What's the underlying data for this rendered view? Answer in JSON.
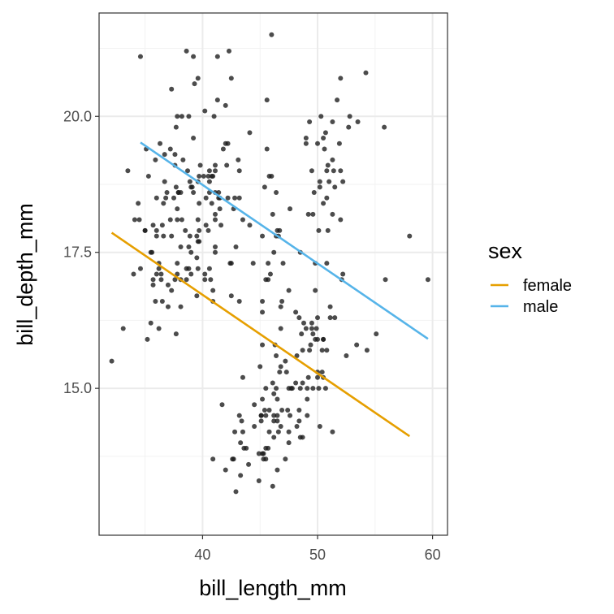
{
  "chart_data": {
    "type": "scatter",
    "xlabel": "bill_length_mm",
    "ylabel": "bill_depth_mm",
    "xlim": [
      31,
      61.3
    ],
    "ylim": [
      12.3,
      21.9
    ],
    "xticks": [
      40,
      50,
      60
    ],
    "yticks": [
      15.0,
      17.5,
      20.0
    ],
    "xtick_labels": [
      "40",
      "50",
      "60"
    ],
    "ytick_labels": [
      "15.0",
      "17.5",
      "20.0"
    ],
    "grid": true,
    "point_color": "#1a1a1a",
    "legend": {
      "title": "sex",
      "position": "right",
      "entries": [
        {
          "label": "female",
          "color": "#E69F00"
        },
        {
          "label": "male",
          "color": "#56B4E9"
        }
      ]
    },
    "lines": [
      {
        "name": "female",
        "color": "#E69F00",
        "x": [
          32.1,
          58.0
        ],
        "y": [
          17.86,
          14.12
        ]
      },
      {
        "name": "male",
        "color": "#56B4E9",
        "x": [
          34.6,
          59.6
        ],
        "y": [
          19.52,
          15.91
        ]
      }
    ],
    "points": [
      [
        39.1,
        18.7
      ],
      [
        39.5,
        17.4
      ],
      [
        40.3,
        18.0
      ],
      [
        36.7,
        19.3
      ],
      [
        39.3,
        20.6
      ],
      [
        38.9,
        17.8
      ],
      [
        39.2,
        19.6
      ],
      [
        34.1,
        18.1
      ],
      [
        42.0,
        20.2
      ],
      [
        37.8,
        17.1
      ],
      [
        37.8,
        17.3
      ],
      [
        41.1,
        17.6
      ],
      [
        38.6,
        21.2
      ],
      [
        34.6,
        21.1
      ],
      [
        36.6,
        17.8
      ],
      [
        38.7,
        19.0
      ],
      [
        42.5,
        20.7
      ],
      [
        34.4,
        18.4
      ],
      [
        46.0,
        21.5
      ],
      [
        37.8,
        18.3
      ],
      [
        37.7,
        18.7
      ],
      [
        35.9,
        19.2
      ],
      [
        38.2,
        18.1
      ],
      [
        38.8,
        17.2
      ],
      [
        35.3,
        18.9
      ],
      [
        40.6,
        18.6
      ],
      [
        40.5,
        17.9
      ],
      [
        37.9,
        18.6
      ],
      [
        40.5,
        18.9
      ],
      [
        39.5,
        16.7
      ],
      [
        37.2,
        18.1
      ],
      [
        39.5,
        17.8
      ],
      [
        40.9,
        18.9
      ],
      [
        36.4,
        17.0
      ],
      [
        39.2,
        21.1
      ],
      [
        38.8,
        20.0
      ],
      [
        42.2,
        18.5
      ],
      [
        37.6,
        19.3
      ],
      [
        39.8,
        19.1
      ],
      [
        36.5,
        18.0
      ],
      [
        40.8,
        18.4
      ],
      [
        36.0,
        18.5
      ],
      [
        44.1,
        19.7
      ],
      [
        37.0,
        16.9
      ],
      [
        39.6,
        18.8
      ],
      [
        41.1,
        19.0
      ],
      [
        36.0,
        17.9
      ],
      [
        42.3,
        21.2
      ],
      [
        39.6,
        17.7
      ],
      [
        40.1,
        18.9
      ],
      [
        35.0,
        17.9
      ],
      [
        42.0,
        19.5
      ],
      [
        34.5,
        18.1
      ],
      [
        41.4,
        18.6
      ],
      [
        39.0,
        17.5
      ],
      [
        40.6,
        18.8
      ],
      [
        36.5,
        16.6
      ],
      [
        37.6,
        19.1
      ],
      [
        35.7,
        16.9
      ],
      [
        41.3,
        21.1
      ],
      [
        37.6,
        17.0
      ],
      [
        41.1,
        18.2
      ],
      [
        36.4,
        17.1
      ],
      [
        41.6,
        18.0
      ],
      [
        35.5,
        16.2
      ],
      [
        41.1,
        19.1
      ],
      [
        35.9,
        16.6
      ],
      [
        41.8,
        19.4
      ],
      [
        33.5,
        19.0
      ],
      [
        39.7,
        18.4
      ],
      [
        39.6,
        17.2
      ],
      [
        45.8,
        18.9
      ],
      [
        35.5,
        17.5
      ],
      [
        42.8,
        18.5
      ],
      [
        40.9,
        16.8
      ],
      [
        37.2,
        19.4
      ],
      [
        36.2,
        16.1
      ],
      [
        42.1,
        19.1
      ],
      [
        34.6,
        17.2
      ],
      [
        42.9,
        17.6
      ],
      [
        36.7,
        18.8
      ],
      [
        35.1,
        19.4
      ],
      [
        37.3,
        17.8
      ],
      [
        41.3,
        20.3
      ],
      [
        36.3,
        19.5
      ],
      [
        36.9,
        18.6
      ],
      [
        38.3,
        19.2
      ],
      [
        38.9,
        18.8
      ],
      [
        35.7,
        18.0
      ],
      [
        41.1,
        18.1
      ],
      [
        34.0,
        17.1
      ],
      [
        39.6,
        18.1
      ],
      [
        36.2,
        17.3
      ],
      [
        40.8,
        18.9
      ],
      [
        38.1,
        18.6
      ],
      [
        40.3,
        18.5
      ],
      [
        33.1,
        16.1
      ],
      [
        43.2,
        18.5
      ],
      [
        35.0,
        17.9
      ],
      [
        41.0,
        20.0
      ],
      [
        37.7,
        16.0
      ],
      [
        37.8,
        20.0
      ],
      [
        37.9,
        18.6
      ],
      [
        39.7,
        18.9
      ],
      [
        38.6,
        17.2
      ],
      [
        38.2,
        20.0
      ],
      [
        38.1,
        17.0
      ],
      [
        43.2,
        19.0
      ],
      [
        38.1,
        16.5
      ],
      [
        45.6,
        20.3
      ],
      [
        39.7,
        17.7
      ],
      [
        42.2,
        19.5
      ],
      [
        39.6,
        20.7
      ],
      [
        42.7,
        18.3
      ],
      [
        38.6,
        17.0
      ],
      [
        37.3,
        20.5
      ],
      [
        35.7,
        17.0
      ],
      [
        41.1,
        18.6
      ],
      [
        36.2,
        17.2
      ],
      [
        37.7,
        19.8
      ],
      [
        40.2,
        17.0
      ],
      [
        41.4,
        18.5
      ],
      [
        35.2,
        15.9
      ],
      [
        40.6,
        19.0
      ],
      [
        38.8,
        17.6
      ],
      [
        41.5,
        18.3
      ],
      [
        39.0,
        17.1
      ],
      [
        44.1,
        18.0
      ],
      [
        38.5,
        17.9
      ],
      [
        43.1,
        19.2
      ],
      [
        36.8,
        18.5
      ],
      [
        37.5,
        18.5
      ],
      [
        38.1,
        17.6
      ],
      [
        41.1,
        17.5
      ],
      [
        35.6,
        17.5
      ],
      [
        40.2,
        20.1
      ],
      [
        37.0,
        16.5
      ],
      [
        39.7,
        17.9
      ],
      [
        40.2,
        17.1
      ],
      [
        40.6,
        17.2
      ],
      [
        32.1,
        15.5
      ],
      [
        40.7,
        17.0
      ],
      [
        37.3,
        16.8
      ],
      [
        39.0,
        18.7
      ],
      [
        39.2,
        18.6
      ],
      [
        36.6,
        18.4
      ],
      [
        36.0,
        17.8
      ],
      [
        37.8,
        18.1
      ],
      [
        36.0,
        17.1
      ],
      [
        41.5,
        18.5
      ],
      [
        46.1,
        13.2
      ],
      [
        50.0,
        16.3
      ],
      [
        48.7,
        14.1
      ],
      [
        50.0,
        15.2
      ],
      [
        47.6,
        14.5
      ],
      [
        46.5,
        13.5
      ],
      [
        45.4,
        14.6
      ],
      [
        46.7,
        15.3
      ],
      [
        43.3,
        13.4
      ],
      [
        46.8,
        15.4
      ],
      [
        40.9,
        13.7
      ],
      [
        49.0,
        16.1
      ],
      [
        45.5,
        13.7
      ],
      [
        48.4,
        14.6
      ],
      [
        45.8,
        14.6
      ],
      [
        49.3,
        15.7
      ],
      [
        42.0,
        13.5
      ],
      [
        49.2,
        15.2
      ],
      [
        46.2,
        14.5
      ],
      [
        48.7,
        15.1
      ],
      [
        50.2,
        14.3
      ],
      [
        45.1,
        14.5
      ],
      [
        46.5,
        14.5
      ],
      [
        46.3,
        15.8
      ],
      [
        42.9,
        13.1
      ],
      [
        46.1,
        15.1
      ],
      [
        44.5,
        14.3
      ],
      [
        47.8,
        15.0
      ],
      [
        48.2,
        14.3
      ],
      [
        50.0,
        15.3
      ],
      [
        47.3,
        15.3
      ],
      [
        42.8,
        14.2
      ],
      [
        45.1,
        14.5
      ],
      [
        59.6,
        17.0
      ],
      [
        49.1,
        14.8
      ],
      [
        48.4,
        16.3
      ],
      [
        42.6,
        13.7
      ],
      [
        44.4,
        17.3
      ],
      [
        44.0,
        13.6
      ],
      [
        48.7,
        15.7
      ],
      [
        42.7,
        13.7
      ],
      [
        49.6,
        16.0
      ],
      [
        45.3,
        13.7
      ],
      [
        49.6,
        15.0
      ],
      [
        50.5,
        15.9
      ],
      [
        43.6,
        13.9
      ],
      [
        45.5,
        13.9
      ],
      [
        50.5,
        15.9
      ],
      [
        44.9,
        13.3
      ],
      [
        45.2,
        15.8
      ],
      [
        46.6,
        14.2
      ],
      [
        48.5,
        14.1
      ],
      [
        45.1,
        14.4
      ],
      [
        50.1,
        15.0
      ],
      [
        46.5,
        14.4
      ],
      [
        45.0,
        15.4
      ],
      [
        43.8,
        13.9
      ],
      [
        45.5,
        15.0
      ],
      [
        43.2,
        14.5
      ],
      [
        50.4,
        15.3
      ],
      [
        45.3,
        13.8
      ],
      [
        46.2,
        14.9
      ],
      [
        45.7,
        13.9
      ],
      [
        54.3,
        15.7
      ],
      [
        45.8,
        14.2
      ],
      [
        49.8,
        16.8
      ],
      [
        46.2,
        14.4
      ],
      [
        49.5,
        16.2
      ],
      [
        43.5,
        14.2
      ],
      [
        50.7,
        15.0
      ],
      [
        47.7,
        15.0
      ],
      [
        46.4,
        15.6
      ],
      [
        48.2,
        15.6
      ],
      [
        46.5,
        14.8
      ],
      [
        46.4,
        15.0
      ],
      [
        48.6,
        16.0
      ],
      [
        47.5,
        14.2
      ],
      [
        51.1,
        16.3
      ],
      [
        45.2,
        13.8
      ],
      [
        45.2,
        16.4
      ],
      [
        49.1,
        14.5
      ],
      [
        52.5,
        15.6
      ],
      [
        47.4,
        14.6
      ],
      [
        50.0,
        15.9
      ],
      [
        44.9,
        13.8
      ],
      [
        50.8,
        17.3
      ],
      [
        43.4,
        14.4
      ],
      [
        51.3,
        14.2
      ],
      [
        47.5,
        14.0
      ],
      [
        52.1,
        17.0
      ],
      [
        47.5,
        15.0
      ],
      [
        52.2,
        17.1
      ],
      [
        45.5,
        14.5
      ],
      [
        49.5,
        16.1
      ],
      [
        44.5,
        14.7
      ],
      [
        50.8,
        15.7
      ],
      [
        49.4,
        15.8
      ],
      [
        46.9,
        14.6
      ],
      [
        48.4,
        14.4
      ],
      [
        51.1,
        16.5
      ],
      [
        48.5,
        15.0
      ],
      [
        55.9,
        17.0
      ],
      [
        47.2,
        15.5
      ],
      [
        49.1,
        15.0
      ],
      [
        46.8,
        16.1
      ],
      [
        41.7,
        14.7
      ],
      [
        53.4,
        15.8
      ],
      [
        43.3,
        14.0
      ],
      [
        48.1,
        15.1
      ],
      [
        50.5,
        15.2
      ],
      [
        49.8,
        15.9
      ],
      [
        43.5,
        15.2
      ],
      [
        51.5,
        16.3
      ],
      [
        46.2,
        14.1
      ],
      [
        55.1,
        16.0
      ],
      [
        48.8,
        16.2
      ],
      [
        47.2,
        13.7
      ],
      [
        46.8,
        14.3
      ],
      [
        50.4,
        15.7
      ],
      [
        45.2,
        14.8
      ],
      [
        49.9,
        16.1
      ],
      [
        46.5,
        17.9
      ],
      [
        50.0,
        19.5
      ],
      [
        51.3,
        19.2
      ],
      [
        45.4,
        18.7
      ],
      [
        52.7,
        19.8
      ],
      [
        45.2,
        17.8
      ],
      [
        46.1,
        18.2
      ],
      [
        51.3,
        18.2
      ],
      [
        46.0,
        18.9
      ],
      [
        51.3,
        19.9
      ],
      [
        46.6,
        17.8
      ],
      [
        51.7,
        20.3
      ],
      [
        47.0,
        17.3
      ],
      [
        52.0,
        18.1
      ],
      [
        45.9,
        17.1
      ],
      [
        50.5,
        19.6
      ],
      [
        50.3,
        20.0
      ],
      [
        58.0,
        17.8
      ],
      [
        46.4,
        18.6
      ],
      [
        49.2,
        18.2
      ],
      [
        42.4,
        17.3
      ],
      [
        48.5,
        17.5
      ],
      [
        43.2,
        16.6
      ],
      [
        50.6,
        19.4
      ],
      [
        46.7,
        17.9
      ],
      [
        52.0,
        19.0
      ],
      [
        50.5,
        18.4
      ],
      [
        49.5,
        19.0
      ],
      [
        46.4,
        17.8
      ],
      [
        52.8,
        20.0
      ],
      [
        40.9,
        16.6
      ],
      [
        54.2,
        20.8
      ],
      [
        42.5,
        16.7
      ],
      [
        51.0,
        18.8
      ],
      [
        49.7,
        18.6
      ],
      [
        47.5,
        16.8
      ],
      [
        47.6,
        18.3
      ],
      [
        52.0,
        20.7
      ],
      [
        46.9,
        16.6
      ],
      [
        53.5,
        19.9
      ],
      [
        49.0,
        19.5
      ],
      [
        46.2,
        17.5
      ],
      [
        50.9,
        19.1
      ],
      [
        45.5,
        17.0
      ],
      [
        50.9,
        17.9
      ],
      [
        50.8,
        18.5
      ],
      [
        50.1,
        17.9
      ],
      [
        49.0,
        19.6
      ],
      [
        51.5,
        18.7
      ],
      [
        49.8,
        17.3
      ],
      [
        48.1,
        16.4
      ],
      [
        51.4,
        19.0
      ],
      [
        45.7,
        17.3
      ],
      [
        50.7,
        19.7
      ],
      [
        42.5,
        17.3
      ],
      [
        52.2,
        18.8
      ],
      [
        45.2,
        16.6
      ],
      [
        49.3,
        19.9
      ],
      [
        50.2,
        18.8
      ],
      [
        45.6,
        19.4
      ],
      [
        51.9,
        19.5
      ],
      [
        46.8,
        16.5
      ],
      [
        45.7,
        17.0
      ],
      [
        55.8,
        19.8
      ],
      [
        43.5,
        18.1
      ],
      [
        49.6,
        18.2
      ],
      [
        50.8,
        19.0
      ],
      [
        50.2,
        18.7
      ]
    ]
  }
}
